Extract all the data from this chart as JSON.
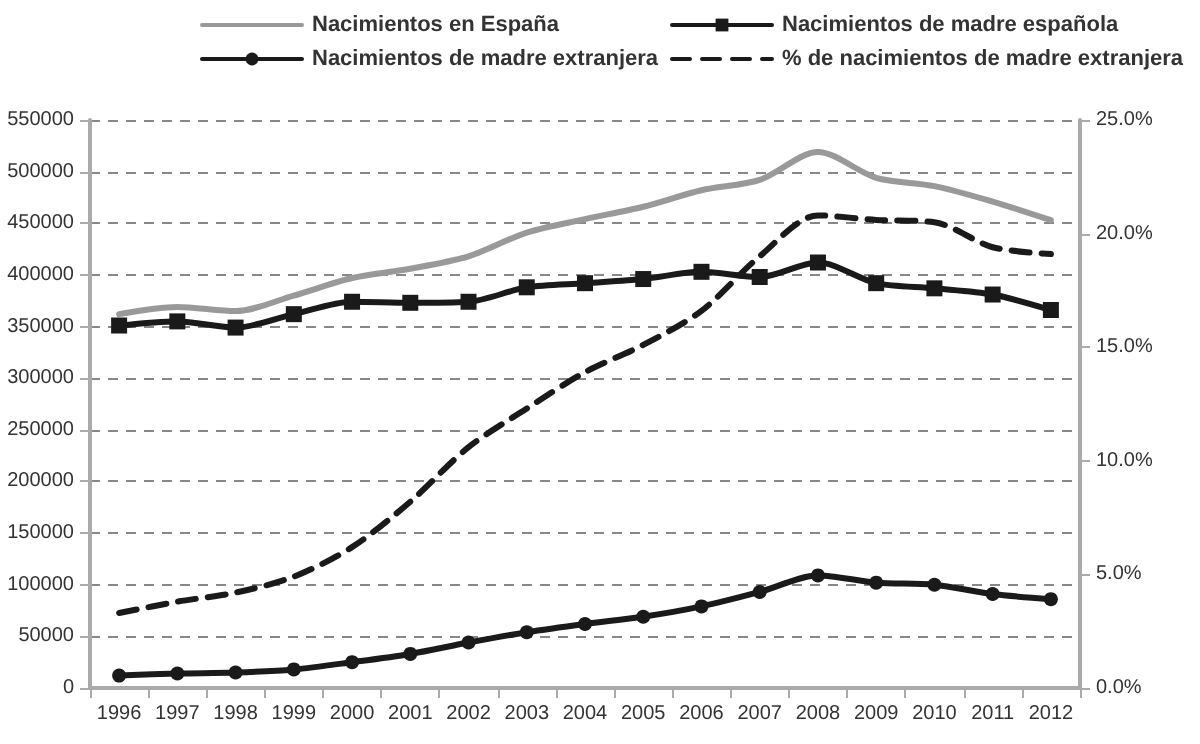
{
  "chart_data": {
    "type": "line",
    "categories": [
      "1996",
      "1997",
      "1998",
      "1999",
      "2000",
      "2001",
      "2002",
      "2003",
      "2004",
      "2005",
      "2006",
      "2007",
      "2008",
      "2009",
      "2010",
      "2011",
      "2012"
    ],
    "series": [
      {
        "name": "Nacimientos en España",
        "color": "#999999",
        "marker": "none",
        "line_style": "solid",
        "values": [
          362000,
          369000,
          365000,
          380000,
          397000,
          406000,
          418000,
          441000,
          454000,
          466000,
          482000,
          492000,
          519000,
          494000,
          486000,
          471000,
          453000
        ]
      },
      {
        "name": "Nacimientos de madre española",
        "color": "#1a1a1a",
        "marker": "square",
        "line_style": "solid",
        "values": [
          351000,
          355000,
          349000,
          362000,
          374000,
          373000,
          374000,
          388000,
          392000,
          396000,
          403000,
          398000,
          412000,
          392000,
          387000,
          381000,
          366000
        ]
      },
      {
        "name": "Nacimientos de madre extranjera",
        "color": "#1a1a1a",
        "marker": "circle",
        "line_style": "solid",
        "values": [
          12000,
          14000,
          15000,
          18000,
          25000,
          33000,
          44000,
          54000,
          62000,
          69000,
          79000,
          93000,
          109000,
          102000,
          100000,
          91000,
          86000
        ]
      },
      {
        "name": "% de nacimientos de madre extranjera",
        "color": "#1a1a1a",
        "marker": "none",
        "line_style": "dashed",
        "axis": "y2",
        "values": [
          3.3,
          3.8,
          4.2,
          4.9,
          6.2,
          8.2,
          10.6,
          12.3,
          13.9,
          15.1,
          16.6,
          19.0,
          20.8,
          20.6,
          20.5,
          19.4,
          19.1
        ]
      }
    ],
    "ylim": [
      0,
      550000
    ],
    "yticks": [
      0,
      50000,
      100000,
      150000,
      200000,
      250000,
      300000,
      350000,
      400000,
      450000,
      500000,
      550000
    ],
    "y2lim": [
      0,
      25
    ],
    "y2ticks": [
      {
        "value": 0,
        "label": "0.0%"
      },
      {
        "value": 5,
        "label": "5.0%"
      },
      {
        "value": 10,
        "label": "10.0%"
      },
      {
        "value": 15,
        "label": "15.0%"
      },
      {
        "value": 20,
        "label": "20.0%"
      },
      {
        "value": 25,
        "label": "25.0%"
      }
    ],
    "grid": "y",
    "legend": "top"
  }
}
